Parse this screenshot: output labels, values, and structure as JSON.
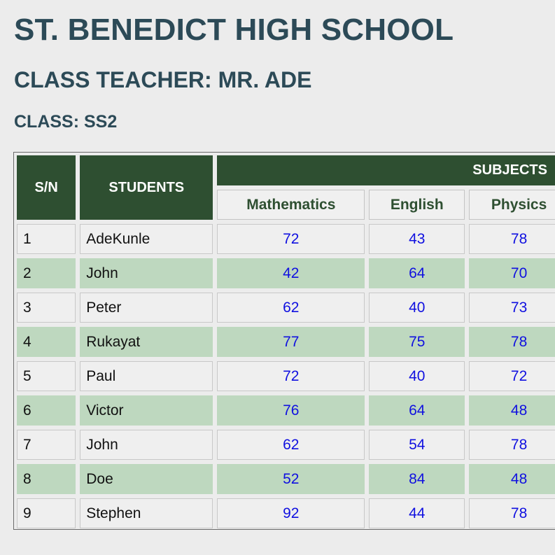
{
  "school_name": "ST. BENEDICT HIGH SCHOOL",
  "class_teacher": "CLASS TEACHER: MR. ADE",
  "class_label": "CLASS: SS2",
  "table": {
    "headers": {
      "sn": "S/N",
      "students": "STUDENTS",
      "subjects": "SUBJECTS",
      "subject_names": [
        "Mathematics",
        "English",
        "Physics"
      ]
    },
    "rows": [
      {
        "sn": "1",
        "name": "AdeKunle",
        "scores": [
          "72",
          "43",
          "78"
        ]
      },
      {
        "sn": "2",
        "name": "John",
        "scores": [
          "42",
          "64",
          "70"
        ]
      },
      {
        "sn": "3",
        "name": "Peter",
        "scores": [
          "62",
          "40",
          "73"
        ]
      },
      {
        "sn": "4",
        "name": "Rukayat",
        "scores": [
          "77",
          "75",
          "78"
        ]
      },
      {
        "sn": "5",
        "name": "Paul",
        "scores": [
          "72",
          "40",
          "72"
        ]
      },
      {
        "sn": "6",
        "name": "Victor",
        "scores": [
          "76",
          "64",
          "48"
        ]
      },
      {
        "sn": "7",
        "name": "John",
        "scores": [
          "62",
          "54",
          "78"
        ]
      },
      {
        "sn": "8",
        "name": "Doe",
        "scores": [
          "52",
          "84",
          "48"
        ]
      },
      {
        "sn": "9",
        "name": "Stephen",
        "scores": [
          "92",
          "44",
          "78"
        ]
      }
    ]
  },
  "colors": {
    "heading": "#2c4a57",
    "header_bg": "#2e4f31",
    "alt_row": "#bed8bf",
    "score_text": "#1010e0"
  }
}
